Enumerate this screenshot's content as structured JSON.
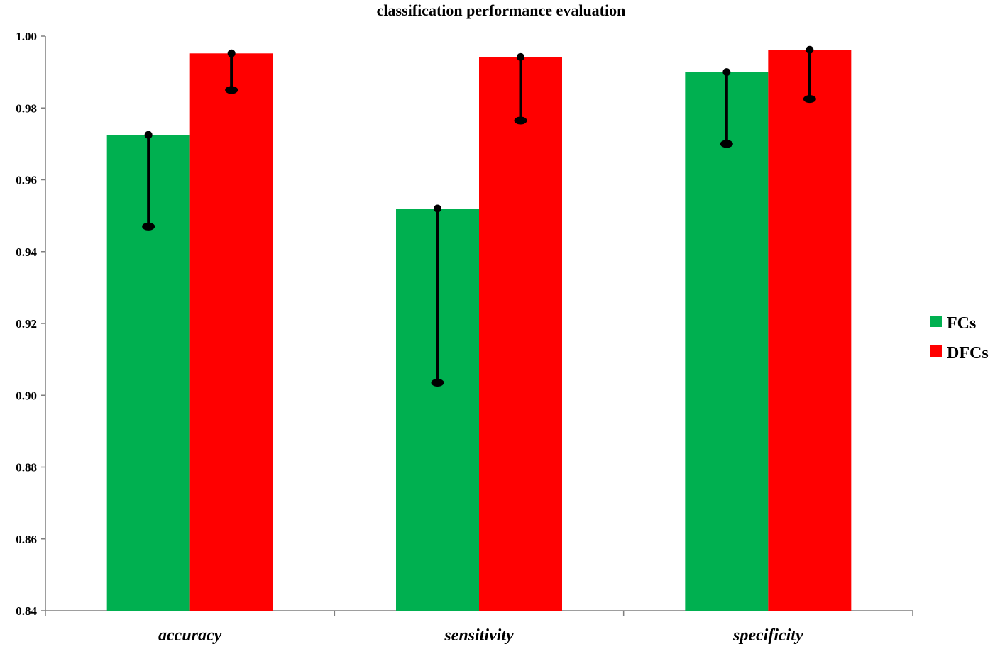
{
  "chart_data": {
    "type": "bar",
    "title": "classification performance evaluation",
    "categories": [
      "accuracy",
      "sensitivity",
      "specificity"
    ],
    "series": [
      {
        "name": "FCs",
        "color": "#00b050",
        "values": [
          0.9725,
          0.952,
          0.99
        ],
        "error_lower": [
          0.947,
          0.9035,
          0.97
        ],
        "error_upper": [
          0.9725,
          0.952,
          0.99
        ]
      },
      {
        "name": "DFCs",
        "color": "#ff0000",
        "values": [
          0.9952,
          0.9942,
          0.9962
        ],
        "error_lower": [
          0.985,
          0.9765,
          0.9825
        ],
        "error_upper": [
          0.9952,
          0.9942,
          0.9962
        ]
      }
    ],
    "yticks": [
      "0.84",
      "0.86",
      "0.88",
      "0.90",
      "0.92",
      "0.94",
      "0.96",
      "0.98",
      "1.00"
    ],
    "ylim": [
      0.84,
      1.0
    ],
    "xlabel": "",
    "ylabel": "",
    "grid": false,
    "legend_position": "right"
  }
}
